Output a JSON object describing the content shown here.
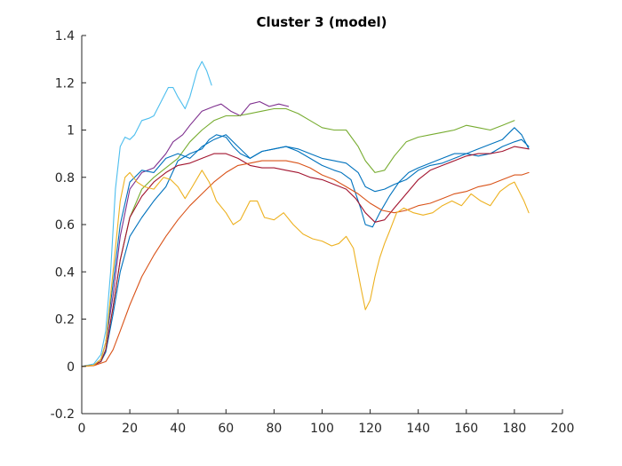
{
  "chart_data": {
    "type": "line",
    "title": "Cluster 3 (model)",
    "xlabel": "",
    "ylabel": "",
    "xlim": [
      0,
      200
    ],
    "ylim": [
      -0.2,
      1.4
    ],
    "xticks": [
      0,
      20,
      40,
      60,
      80,
      100,
      120,
      140,
      160,
      180,
      200
    ],
    "yticks": [
      -0.2,
      0,
      0.2,
      0.4,
      0.6,
      0.8,
      1,
      1.2,
      1.4
    ],
    "grid": false,
    "legend": "none",
    "series": [
      {
        "color": "#4DBEEE",
        "x": [
          0,
          5,
          8,
          10,
          12,
          14,
          16,
          18,
          20,
          22,
          25,
          28,
          30,
          33,
          36,
          38,
          40,
          43,
          45,
          48,
          50,
          52,
          54
        ],
        "y": [
          0,
          0.01,
          0.05,
          0.15,
          0.4,
          0.75,
          0.93,
          0.97,
          0.96,
          0.98,
          1.04,
          1.05,
          1.06,
          1.12,
          1.18,
          1.18,
          1.14,
          1.09,
          1.14,
          1.25,
          1.29,
          1.25,
          1.19
        ]
      },
      {
        "color": "#7E2F8E",
        "x": [
          0,
          5,
          8,
          10,
          13,
          16,
          20,
          25,
          30,
          35,
          38,
          42,
          45,
          50,
          55,
          58,
          62,
          66,
          70,
          74,
          78,
          82,
          86
        ],
        "y": [
          0,
          0.005,
          0.03,
          0.1,
          0.3,
          0.55,
          0.75,
          0.82,
          0.84,
          0.9,
          0.95,
          0.98,
          1.02,
          1.08,
          1.1,
          1.11,
          1.08,
          1.06,
          1.11,
          1.12,
          1.1,
          1.11,
          1.1
        ]
      },
      {
        "color": "#77AC30",
        "x": [
          0,
          5,
          8,
          10,
          13,
          16,
          20,
          25,
          30,
          35,
          40,
          45,
          50,
          55,
          60,
          65,
          70,
          75,
          80,
          85,
          90,
          95,
          100,
          105,
          110,
          115,
          118,
          122,
          126,
          130,
          135,
          140,
          145,
          150,
          155,
          160,
          165,
          170,
          175,
          180
        ],
        "y": [
          0,
          0.005,
          0.02,
          0.07,
          0.25,
          0.45,
          0.63,
          0.75,
          0.8,
          0.84,
          0.88,
          0.95,
          1.0,
          1.04,
          1.06,
          1.06,
          1.07,
          1.08,
          1.09,
          1.09,
          1.07,
          1.04,
          1.01,
          1.0,
          1.0,
          0.93,
          0.87,
          0.82,
          0.83,
          0.89,
          0.95,
          0.97,
          0.98,
          0.99,
          1.0,
          1.02,
          1.01,
          1.0,
          1.02,
          1.04
        ]
      },
      {
        "color": "#0072BD",
        "x": [
          0,
          5,
          8,
          10,
          13,
          16,
          20,
          25,
          30,
          35,
          40,
          45,
          50,
          53,
          56,
          60,
          63,
          66,
          70,
          75,
          80,
          85,
          90,
          95,
          100,
          105,
          108,
          112,
          116,
          118,
          121,
          124,
          128,
          132,
          136,
          140,
          145,
          150,
          155,
          160,
          165,
          170,
          175,
          180,
          183,
          186
        ],
        "y": [
          0,
          0.005,
          0.02,
          0.06,
          0.22,
          0.4,
          0.55,
          0.63,
          0.7,
          0.76,
          0.87,
          0.9,
          0.92,
          0.96,
          0.98,
          0.97,
          0.93,
          0.9,
          0.88,
          0.91,
          0.92,
          0.93,
          0.91,
          0.88,
          0.85,
          0.83,
          0.82,
          0.79,
          0.67,
          0.6,
          0.59,
          0.65,
          0.72,
          0.78,
          0.82,
          0.84,
          0.86,
          0.88,
          0.9,
          0.9,
          0.89,
          0.9,
          0.93,
          0.95,
          0.96,
          0.93
        ]
      },
      {
        "color": "#0072BD",
        "x": [
          0,
          5,
          8,
          10,
          13,
          16,
          20,
          25,
          30,
          35,
          40,
          45,
          50,
          55,
          60,
          65,
          70,
          75,
          80,
          85,
          90,
          95,
          100,
          105,
          110,
          115,
          118,
          122,
          126,
          130,
          135,
          140,
          145,
          150,
          155,
          160,
          165,
          170,
          175,
          180,
          183,
          186
        ],
        "y": [
          0,
          0.005,
          0.03,
          0.1,
          0.35,
          0.6,
          0.78,
          0.83,
          0.82,
          0.88,
          0.9,
          0.88,
          0.93,
          0.96,
          0.98,
          0.93,
          0.88,
          0.91,
          0.92,
          0.93,
          0.92,
          0.9,
          0.88,
          0.87,
          0.86,
          0.82,
          0.76,
          0.74,
          0.75,
          0.77,
          0.79,
          0.83,
          0.85,
          0.86,
          0.88,
          0.9,
          0.92,
          0.94,
          0.96,
          1.01,
          0.98,
          0.92
        ]
      },
      {
        "color": "#A2142F",
        "x": [
          0,
          5,
          8,
          10,
          13,
          16,
          20,
          25,
          30,
          35,
          40,
          45,
          50,
          55,
          60,
          65,
          70,
          75,
          80,
          85,
          90,
          95,
          100,
          105,
          110,
          114,
          118,
          122,
          126,
          130,
          135,
          140,
          145,
          150,
          155,
          160,
          165,
          170,
          175,
          180,
          186
        ],
        "y": [
          0,
          0.005,
          0.02,
          0.07,
          0.25,
          0.45,
          0.63,
          0.72,
          0.78,
          0.82,
          0.85,
          0.86,
          0.88,
          0.9,
          0.9,
          0.88,
          0.85,
          0.84,
          0.84,
          0.83,
          0.82,
          0.8,
          0.79,
          0.77,
          0.75,
          0.71,
          0.65,
          0.61,
          0.62,
          0.67,
          0.73,
          0.79,
          0.83,
          0.85,
          0.87,
          0.89,
          0.9,
          0.9,
          0.91,
          0.93,
          0.92
        ]
      },
      {
        "color": "#D95319",
        "x": [
          0,
          5,
          10,
          13,
          16,
          20,
          25,
          30,
          35,
          40,
          45,
          50,
          55,
          60,
          65,
          70,
          75,
          80,
          85,
          90,
          95,
          100,
          105,
          110,
          115,
          120,
          125,
          130,
          135,
          140,
          145,
          150,
          155,
          160,
          165,
          170,
          175,
          180,
          183,
          186
        ],
        "y": [
          0,
          0.003,
          0.02,
          0.07,
          0.15,
          0.26,
          0.38,
          0.47,
          0.55,
          0.62,
          0.68,
          0.73,
          0.78,
          0.82,
          0.85,
          0.86,
          0.87,
          0.87,
          0.87,
          0.86,
          0.84,
          0.81,
          0.79,
          0.76,
          0.73,
          0.69,
          0.66,
          0.65,
          0.66,
          0.68,
          0.69,
          0.71,
          0.73,
          0.74,
          0.76,
          0.77,
          0.79,
          0.81,
          0.81,
          0.82
        ]
      },
      {
        "color": "#EDB120",
        "x": [
          0,
          5,
          8,
          10,
          13,
          16,
          18,
          20,
          23,
          26,
          30,
          34,
          37,
          40,
          43,
          46,
          50,
          53,
          56,
          60,
          63,
          66,
          70,
          73,
          76,
          80,
          84,
          88,
          92,
          96,
          100,
          104,
          107,
          110,
          113,
          116,
          118,
          120,
          122,
          124,
          126,
          128,
          131,
          134,
          138,
          142,
          146,
          150,
          154,
          158,
          162,
          166,
          170,
          174,
          178,
          180,
          182,
          184,
          186
        ],
        "y": [
          0,
          0.005,
          0.03,
          0.1,
          0.4,
          0.7,
          0.8,
          0.82,
          0.78,
          0.76,
          0.75,
          0.8,
          0.79,
          0.76,
          0.71,
          0.76,
          0.83,
          0.78,
          0.7,
          0.65,
          0.6,
          0.62,
          0.7,
          0.7,
          0.63,
          0.62,
          0.65,
          0.6,
          0.56,
          0.54,
          0.53,
          0.51,
          0.52,
          0.55,
          0.5,
          0.34,
          0.24,
          0.28,
          0.38,
          0.46,
          0.52,
          0.57,
          0.65,
          0.67,
          0.65,
          0.64,
          0.65,
          0.68,
          0.7,
          0.68,
          0.73,
          0.7,
          0.68,
          0.74,
          0.77,
          0.78,
          0.74,
          0.7,
          0.65
        ]
      }
    ]
  }
}
